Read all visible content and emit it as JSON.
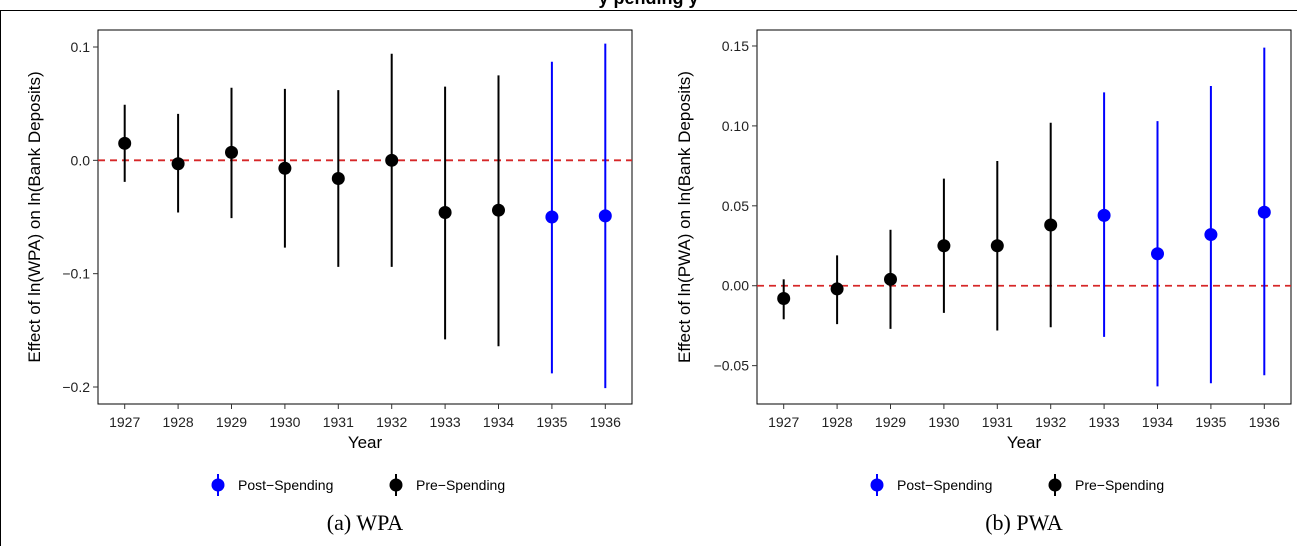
{
  "page": {
    "title_partial": "y                                                    pending                          y"
  },
  "colors": {
    "post": "#0000FF",
    "pre": "#000000",
    "zero_line": "#D62728"
  },
  "legend": {
    "post_label": "Post−Spending",
    "pre_label": "Pre−Spending"
  },
  "chart_data": [
    {
      "type": "scatter",
      "caption": "(a) WPA",
      "xlabel": "Year",
      "ylabel": "Effect of ln(WPA) on ln(Bank Deposits)",
      "x": [
        1927,
        1928,
        1929,
        1930,
        1931,
        1932,
        1933,
        1934,
        1935,
        1936
      ],
      "ylim": [
        -0.215,
        0.115
      ],
      "yticks": [
        -0.2,
        -0.1,
        0.0,
        0.1
      ],
      "ytick_labels": [
        "−0.2",
        "−0.1",
        "0.0",
        "0.1"
      ],
      "reference_line": 0,
      "legend_position": "bottom",
      "series": [
        {
          "name": "Pre−Spending",
          "x": [
            1927,
            1928,
            1929,
            1930,
            1931,
            1932,
            1933,
            1934
          ],
          "y": [
            0.015,
            -0.003,
            0.007,
            -0.007,
            -0.016,
            0.0,
            -0.046,
            -0.044
          ],
          "lo": [
            -0.019,
            -0.046,
            -0.051,
            -0.077,
            -0.094,
            -0.094,
            -0.158,
            -0.164
          ],
          "hi": [
            0.049,
            0.041,
            0.064,
            0.063,
            0.062,
            0.094,
            0.065,
            0.075
          ]
        },
        {
          "name": "Post−Spending",
          "x": [
            1935,
            1936
          ],
          "y": [
            -0.05,
            -0.049
          ],
          "lo": [
            -0.188,
            -0.201
          ],
          "hi": [
            0.087,
            0.103
          ]
        }
      ]
    },
    {
      "type": "scatter",
      "caption": "(b) PWA",
      "xlabel": "Year",
      "ylabel": "Effect of ln(PWA) on ln(Bank Deposits)",
      "x": [
        1927,
        1928,
        1929,
        1930,
        1931,
        1932,
        1933,
        1934,
        1935,
        1936
      ],
      "ylim": [
        -0.074,
        0.16
      ],
      "yticks": [
        -0.05,
        0.0,
        0.05,
        0.1,
        0.15
      ],
      "ytick_labels": [
        "−0.05",
        "0.00",
        "0.05",
        "0.10",
        "0.15"
      ],
      "reference_line": 0,
      "legend_position": "bottom",
      "series": [
        {
          "name": "Pre−Spending",
          "x": [
            1927,
            1928,
            1929,
            1930,
            1931,
            1932
          ],
          "y": [
            -0.008,
            -0.002,
            0.004,
            0.025,
            0.025,
            0.038
          ],
          "lo": [
            -0.021,
            -0.024,
            -0.027,
            -0.017,
            -0.028,
            -0.026
          ],
          "hi": [
            0.004,
            0.019,
            0.035,
            0.067,
            0.078,
            0.102
          ]
        },
        {
          "name": "Post−Spending",
          "x": [
            1933,
            1934,
            1935,
            1936
          ],
          "y": [
            0.044,
            0.02,
            0.032,
            0.046
          ],
          "lo": [
            -0.032,
            -0.063,
            -0.061,
            -0.056
          ],
          "hi": [
            0.121,
            0.103,
            0.125,
            0.149
          ]
        }
      ]
    }
  ]
}
